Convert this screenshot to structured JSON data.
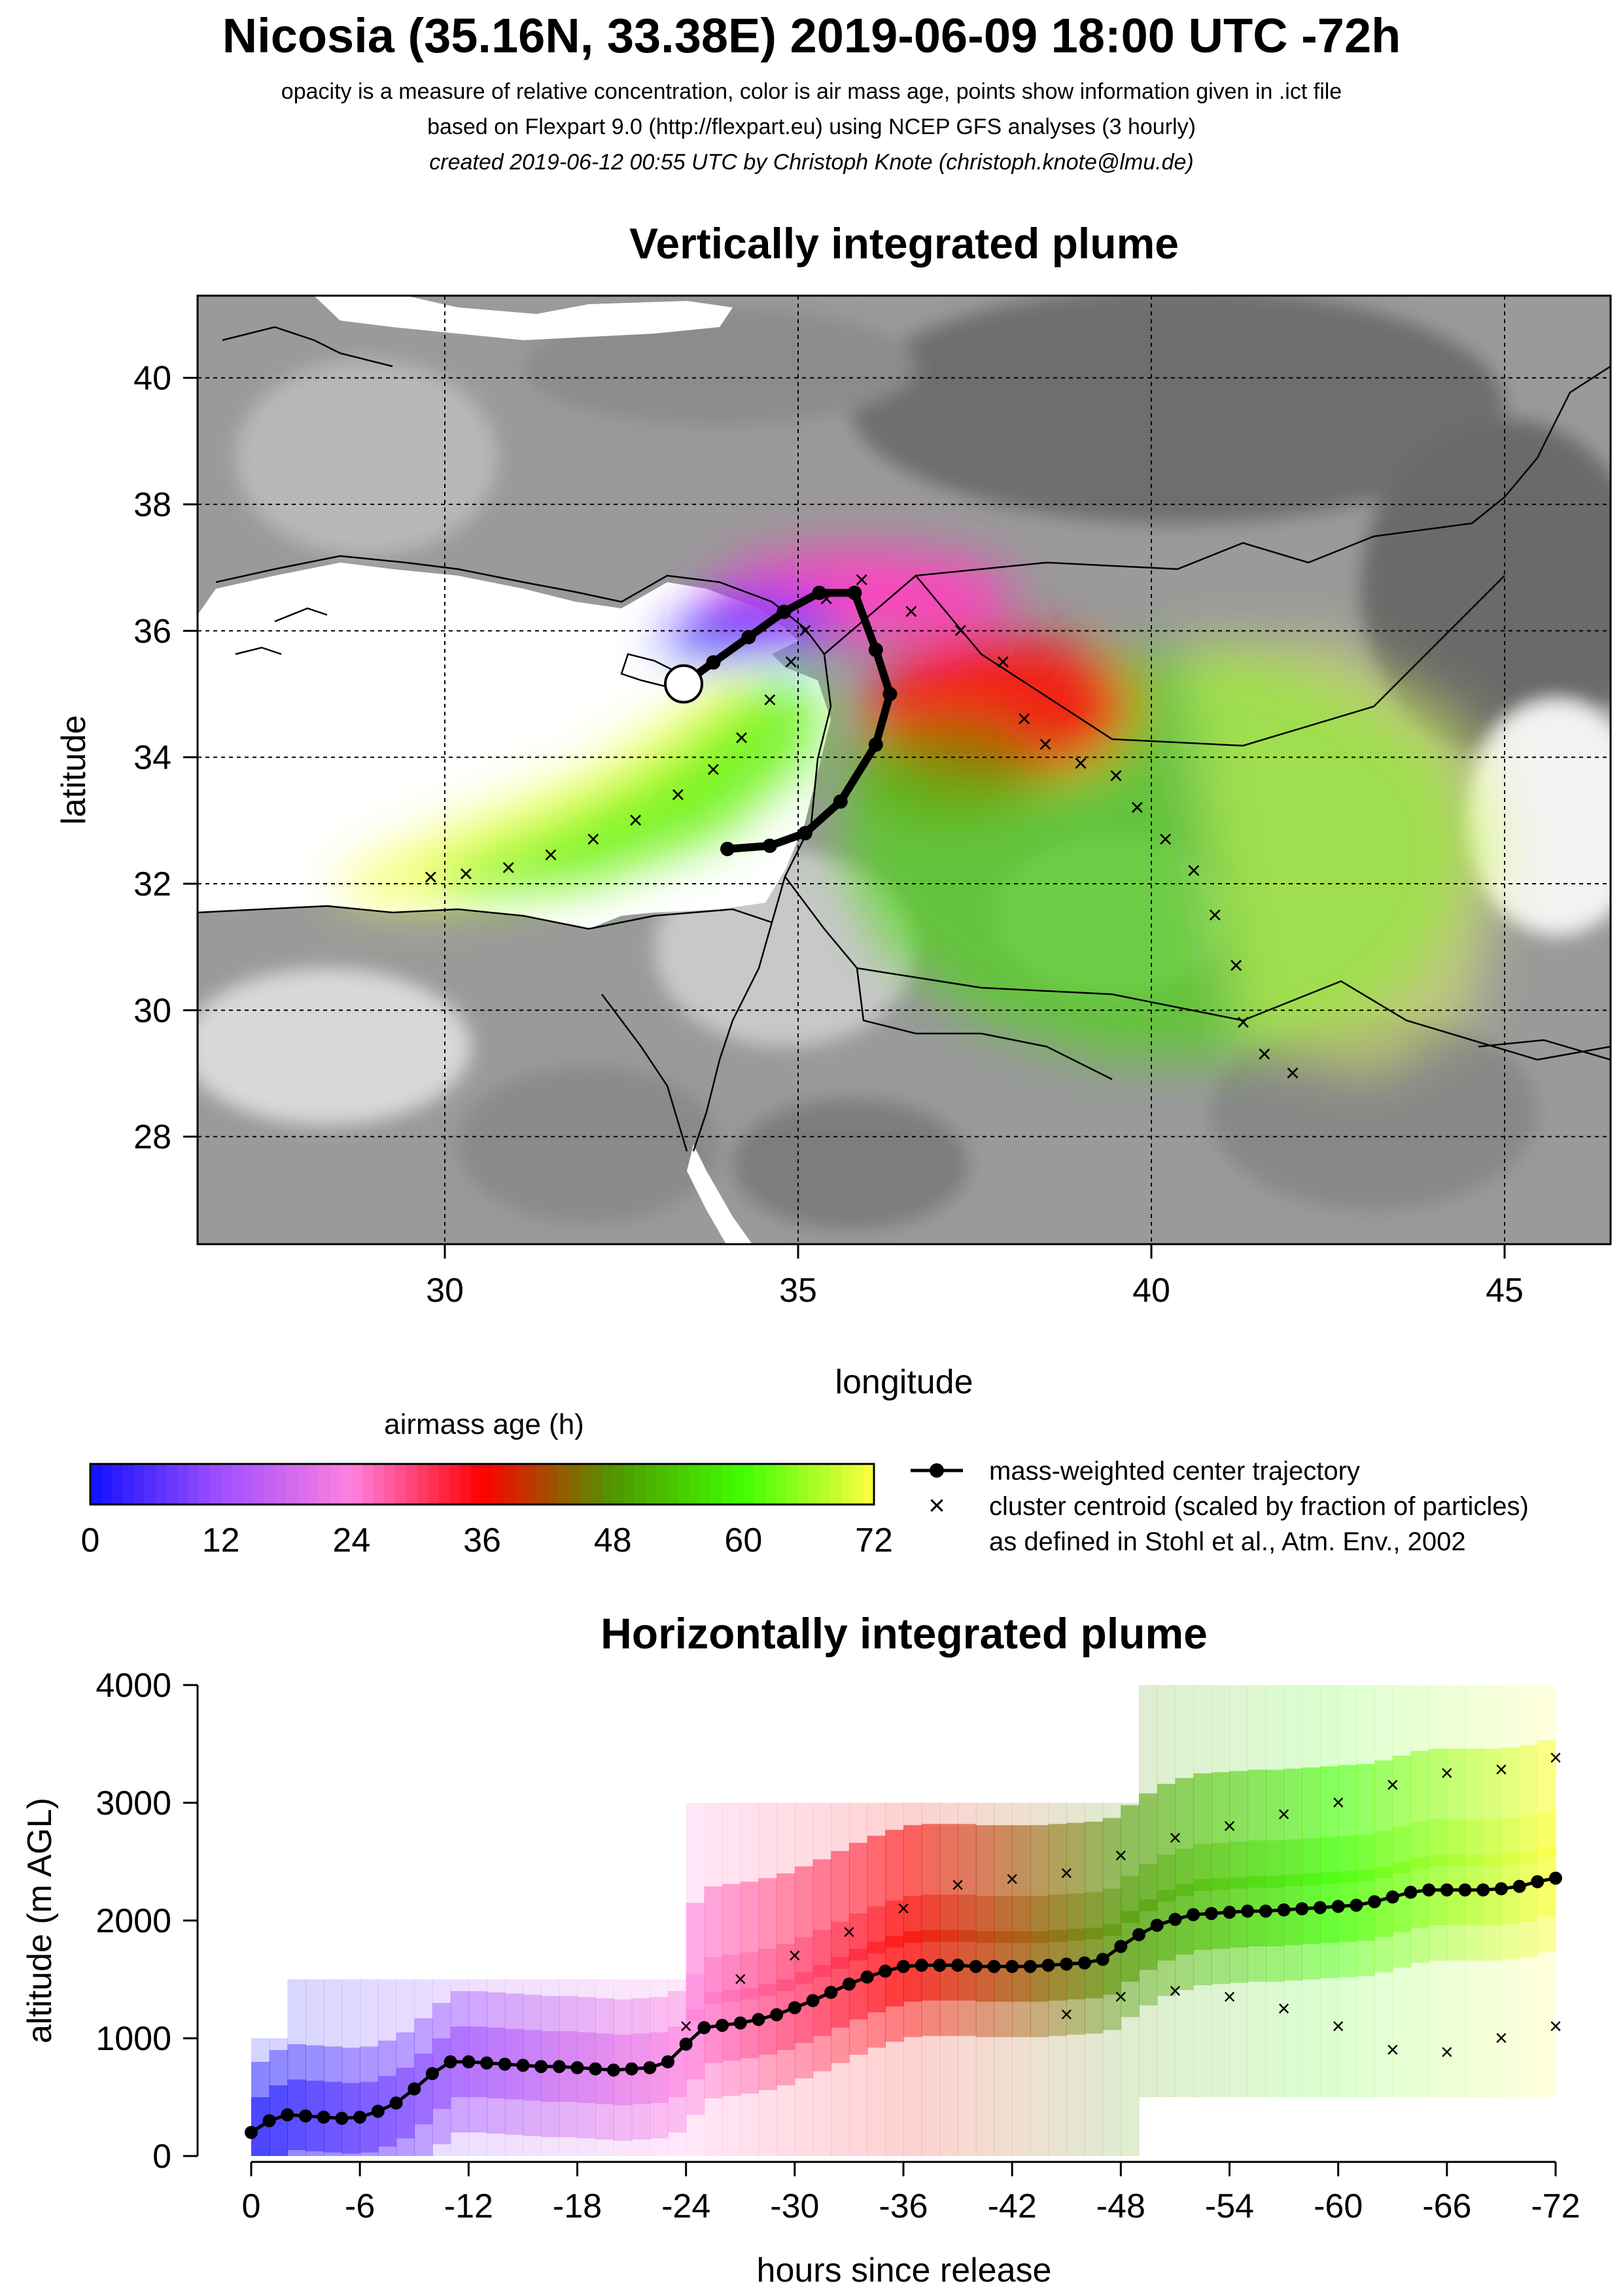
{
  "header": {
    "title": "Nicosia (35.16N, 33.38E) 2019-06-09 18:00 UTC -72h",
    "line1": "opacity is a measure of relative concentration, color is air mass age, points show information given in .ict file",
    "line2": "based on Flexpart 9.0 (http://flexpart.eu) using NCEP GFS analyses (3 hourly)",
    "line3": "created 2019-06-12 00:55 UTC by Christoph Knote (christoph.knote@lmu.de)"
  },
  "colors": {
    "age_0": "#1010ff",
    "age_12": "#a050ff",
    "age_24": "#ff80e0",
    "age_36": "#ff0000",
    "age_48": "#40c000",
    "age_60": "#40ff00",
    "age_72": "#ffff40",
    "terrain_dark": "#7a7a7a",
    "terrain_light": "#d8d8d8"
  },
  "chart_data": [
    {
      "type": "scatter",
      "title": "Vertically integrated plume",
      "xlabel": "longitude",
      "ylabel": "latitude",
      "xlim": [
        26.5,
        46.5
      ],
      "ylim": [
        26.3,
        41.3
      ],
      "xticks": [
        30,
        35,
        40,
        45
      ],
      "yticks": [
        28,
        30,
        32,
        34,
        36,
        38,
        40
      ],
      "grid": true,
      "release_site": {
        "lon": 33.38,
        "lat": 35.16
      },
      "center_trajectory": {
        "lon": [
          33.38,
          33.8,
          34.3,
          34.8,
          35.3,
          35.8,
          36.1,
          36.3,
          36.1,
          35.6,
          35.1,
          34.6,
          34.0
        ],
        "lat": [
          35.16,
          35.5,
          35.9,
          36.3,
          36.6,
          36.6,
          35.7,
          35.0,
          34.2,
          33.3,
          32.8,
          32.6,
          32.55
        ]
      },
      "cluster_centroids": {
        "lon": [
          29.8,
          30.3,
          30.9,
          31.5,
          32.1,
          32.7,
          33.3,
          33.8,
          34.2,
          34.6,
          34.9,
          35.1,
          35.4,
          35.9,
          36.6,
          37.3,
          37.9,
          38.2,
          38.5,
          39.0,
          39.5,
          39.8,
          40.2,
          40.6,
          40.9,
          41.2,
          41.3,
          41.6,
          42.0
        ],
        "lat": [
          32.1,
          32.15,
          32.25,
          32.45,
          32.7,
          33.0,
          33.4,
          33.8,
          34.3,
          34.9,
          35.5,
          36.0,
          36.5,
          36.8,
          36.3,
          36.0,
          35.5,
          34.6,
          34.2,
          33.9,
          33.7,
          33.2,
          32.7,
          32.2,
          31.5,
          30.7,
          29.8,
          29.3,
          29.0
        ]
      }
    },
    {
      "type": "scatter",
      "title": "Horizontally integrated plume",
      "xlabel": "hours since release",
      "ylabel": "altitude (m AGL)",
      "xticks": [
        0,
        -6,
        -12,
        -18,
        -24,
        -30,
        -36,
        -42,
        -48,
        -54,
        -60,
        -66,
        -72
      ],
      "xlim": [
        0,
        -72
      ],
      "ylim": [
        0,
        4000
      ],
      "yticks": [
        0,
        1000,
        2000,
        3000,
        4000
      ],
      "center_trajectory": {
        "x": [
          0,
          -1,
          -2,
          -3,
          -4,
          -5,
          -6,
          -7,
          -8,
          -9,
          -10,
          -11,
          -12,
          -13,
          -14,
          -15,
          -16,
          -17,
          -18,
          -19,
          -20,
          -21,
          -22,
          -23,
          -24,
          -25,
          -26,
          -27,
          -28,
          -29,
          -30,
          -31,
          -32,
          -33,
          -34,
          -35,
          -36,
          -37,
          -38,
          -39,
          -40,
          -41,
          -42,
          -43,
          -44,
          -45,
          -46,
          -47,
          -48,
          -49,
          -50,
          -51,
          -52,
          -53,
          -54,
          -55,
          -56,
          -57,
          -58,
          -59,
          -60,
          -61,
          -62,
          -63,
          -64,
          -65,
          -66,
          -67,
          -68,
          -69,
          -70,
          -71,
          -72
        ],
        "y": [
          200,
          300,
          350,
          340,
          330,
          320,
          330,
          380,
          450,
          570,
          700,
          800,
          800,
          790,
          780,
          770,
          760,
          760,
          750,
          740,
          730,
          740,
          750,
          800,
          950,
          1090,
          1110,
          1130,
          1160,
          1200,
          1260,
          1320,
          1390,
          1460,
          1520,
          1570,
          1610,
          1620,
          1620,
          1620,
          1610,
          1610,
          1610,
          1610,
          1620,
          1630,
          1640,
          1670,
          1780,
          1880,
          1960,
          2010,
          2050,
          2060,
          2070,
          2080,
          2080,
          2090,
          2100,
          2110,
          2120,
          2130,
          2160,
          2200,
          2240,
          2260,
          2260,
          2260,
          2260,
          2270,
          2290,
          2330,
          2360
        ]
      },
      "cluster_upper": {
        "x": [
          -24,
          -27,
          -30,
          -33,
          -36,
          -39,
          -42,
          -45,
          -48,
          -51,
          -54,
          -57,
          -60,
          -63,
          -66,
          -69,
          -72
        ],
        "y": [
          1100,
          1500,
          1700,
          1900,
          2100,
          2300,
          2350,
          2400,
          2550,
          2700,
          2800,
          2900,
          3000,
          3150,
          3250,
          3280,
          3380
        ]
      },
      "cluster_lower": {
        "x": [
          -45,
          -48,
          -51,
          -54,
          -57,
          -60,
          -63,
          -66,
          -69,
          -72
        ],
        "y": [
          1200,
          1350,
          1400,
          1350,
          1250,
          1100,
          900,
          880,
          1000,
          1100
        ]
      }
    }
  ],
  "colorbar": {
    "title": "airmass age (h)",
    "ticks": [
      "0",
      "12",
      "24",
      "36",
      "48",
      "60",
      "72"
    ]
  },
  "legend": {
    "line_label": "mass-weighted center trajectory",
    "cross_label": "cluster centroid (scaled by fraction of particles)",
    "ref_label": "as defined in Stohl et al., Atm. Env., 2002"
  }
}
